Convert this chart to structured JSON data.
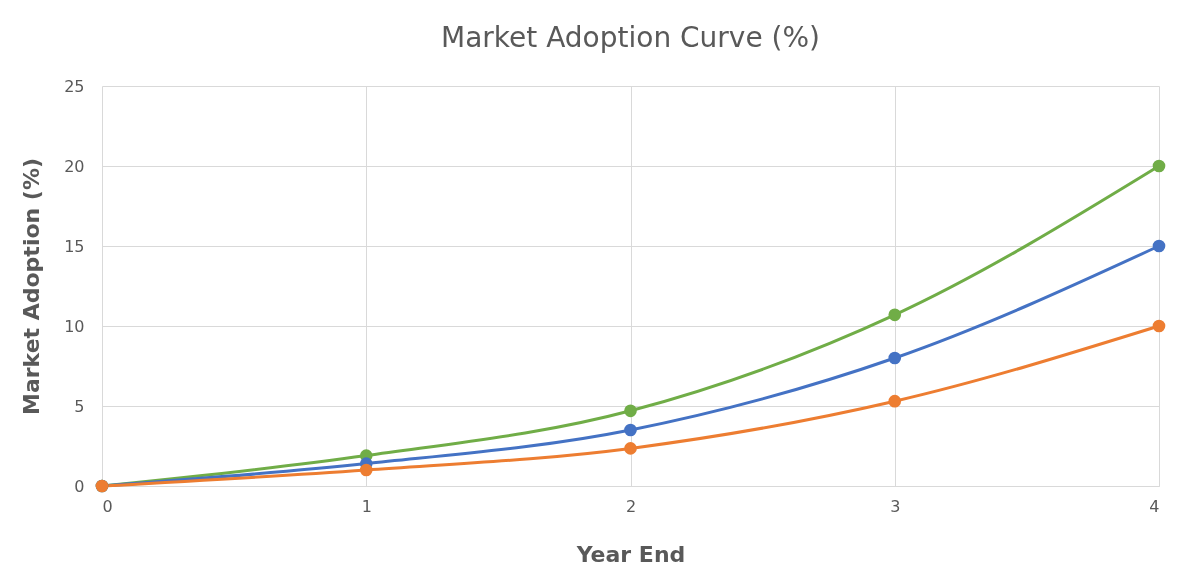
{
  "chart_data": {
    "type": "line",
    "title": "Market Adoption Curve (%)",
    "xlabel": "Year End",
    "ylabel": "Market Adoption (%)",
    "x": [
      0,
      1,
      2,
      3,
      4
    ],
    "series": [
      {
        "color": "#70ad47",
        "values": [
          0,
          1.9,
          4.7,
          10.7,
          20
        ]
      },
      {
        "color": "#4472c4",
        "values": [
          0,
          1.4,
          3.5,
          8.0,
          15
        ]
      },
      {
        "color": "#ed7d31",
        "values": [
          0,
          1.0,
          2.35,
          5.3,
          10
        ]
      }
    ],
    "xlim": [
      0,
      4
    ],
    "xticks": [
      0,
      1,
      2,
      3,
      4
    ],
    "ylim": [
      0,
      25
    ],
    "yticks": [
      0,
      5,
      10,
      15,
      20,
      25
    ],
    "grid": true,
    "legend": false,
    "marker": "circle",
    "line_style": "solid"
  }
}
